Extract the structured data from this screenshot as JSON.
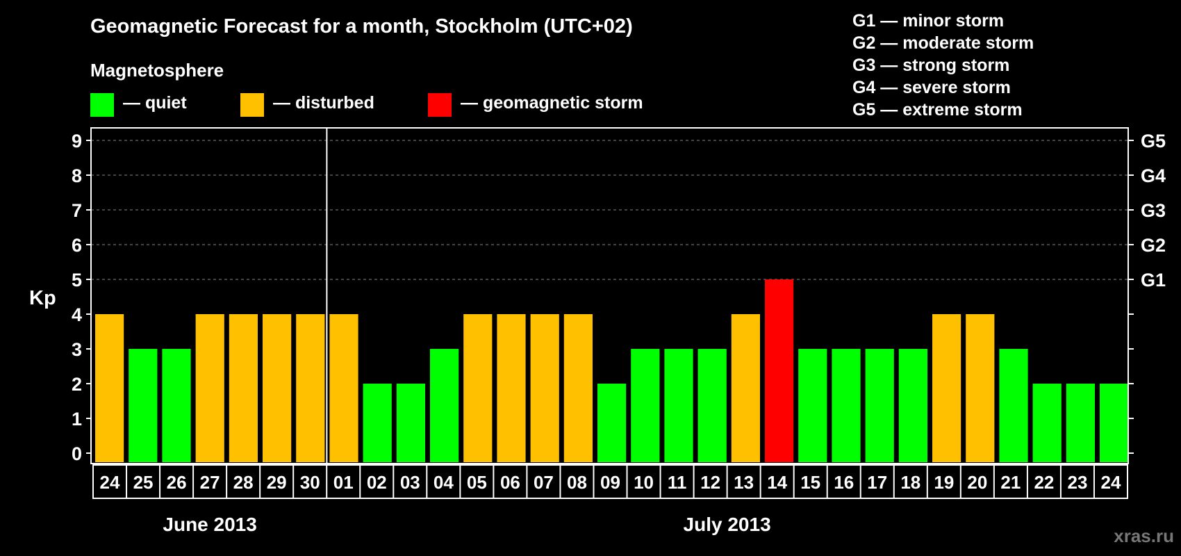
{
  "title": "Geomagnetic Forecast for a month, Stockholm (UTC+02)",
  "magnetosphere_label": "Magnetosphere",
  "legend": [
    {
      "label": "— quiet",
      "color": "#00ff00"
    },
    {
      "label": "— disturbed",
      "color": "#ffc000"
    },
    {
      "label": "— geomagnetic storm",
      "color": "#ff0000"
    }
  ],
  "g_scale_legend": [
    "G1 — minor storm",
    "G2 — moderate storm",
    "G3 — strong storm",
    "G4 — severe storm",
    "G5 — extreme storm"
  ],
  "watermark": "xras.ru",
  "chart_data": {
    "type": "bar",
    "ylabel": "Kp",
    "ylim": [
      0,
      9
    ],
    "yticks": [
      "0",
      "1",
      "2",
      "3",
      "4",
      "5",
      "6",
      "7",
      "8",
      "9"
    ],
    "right_axis_labels": [
      {
        "value": 5,
        "label": "G1"
      },
      {
        "value": 6,
        "label": "G2"
      },
      {
        "value": 7,
        "label": "G3"
      },
      {
        "value": 8,
        "label": "G4"
      },
      {
        "value": 9,
        "label": "G5"
      }
    ],
    "grid": "dashed at 5-9",
    "categories": [
      "24",
      "25",
      "26",
      "27",
      "28",
      "29",
      "30",
      "01",
      "02",
      "03",
      "04",
      "05",
      "06",
      "07",
      "08",
      "09",
      "10",
      "11",
      "12",
      "13",
      "14",
      "15",
      "16",
      "17",
      "18",
      "19",
      "20",
      "21",
      "22",
      "23",
      "24"
    ],
    "values": [
      4,
      3,
      3,
      4,
      4,
      4,
      4,
      4,
      2,
      2,
      3,
      4,
      4,
      4,
      4,
      2,
      3,
      3,
      3,
      4,
      5,
      3,
      3,
      3,
      3,
      4,
      4,
      3,
      2,
      2,
      2
    ],
    "months": [
      {
        "label": "June 2013",
        "start_index": 0,
        "end_index": 6
      },
      {
        "label": "July 2013",
        "start_index": 7,
        "end_index": 30
      }
    ],
    "colors": {
      "quiet": "#00ff00",
      "disturbed": "#ffc000",
      "storm": "#ff0000"
    }
  }
}
